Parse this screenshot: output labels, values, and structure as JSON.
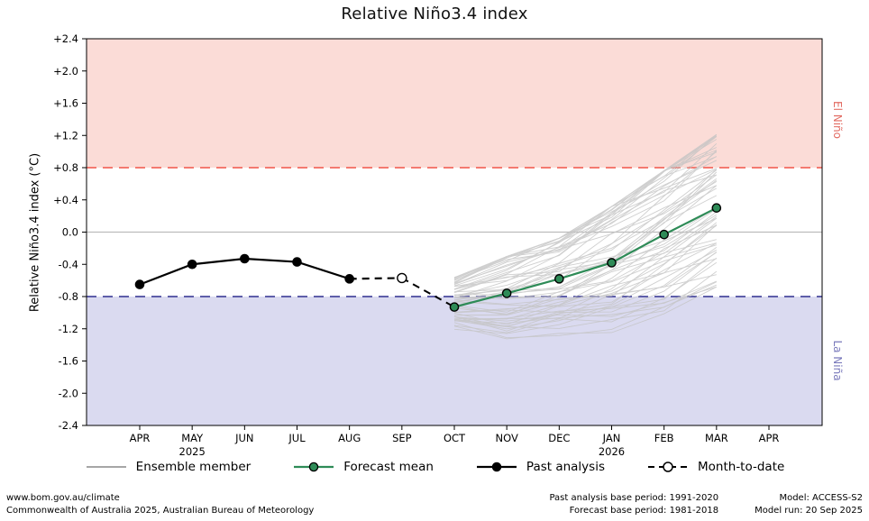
{
  "chart_data": {
    "type": "line",
    "title": "Relative Niño3.4 index",
    "ylabel": "Relative Niño3.4 index (°C)",
    "ylim": [
      -2.4,
      2.4
    ],
    "ytick_step": 0.4,
    "grid": false,
    "x_categories": [
      "APR",
      "MAY",
      "JUN",
      "JUL",
      "AUG",
      "SEP",
      "OCT",
      "NOV",
      "DEC",
      "JAN",
      "FEB",
      "MAR",
      "APR"
    ],
    "x_year_labels": [
      {
        "index": 1,
        "label": "2025"
      },
      {
        "index": 9,
        "label": "2026"
      }
    ],
    "regions": [
      {
        "key": "el-nino",
        "name": "El Niño",
        "from": 0.8,
        "to": 2.4,
        "fill": "#fbdcd7",
        "label_color": "#e26b62"
      },
      {
        "key": "la-nina",
        "name": "La Niña",
        "from": -2.4,
        "to": -0.8,
        "fill": "#dadaf0",
        "label_color": "#7979bb"
      }
    ],
    "threshold_lines": [
      {
        "key": "el-nino-threshold",
        "value": 0.8,
        "color": "#f4695f",
        "style": "dashed"
      },
      {
        "key": "la-nina-threshold",
        "value": -0.8,
        "color": "#4a4a9e",
        "style": "dashed"
      },
      {
        "key": "zero-line",
        "value": 0,
        "color": "#bcbcbc",
        "style": "solid"
      }
    ],
    "series": [
      {
        "name": "Past analysis",
        "months": [
          "APR",
          "MAY",
          "JUN",
          "JUL",
          "AUG"
        ],
        "values": [
          -0.65,
          -0.4,
          -0.33,
          -0.37,
          -0.58
        ],
        "line_color": "#000000",
        "line_style": "solid",
        "marker_fill": "#000000",
        "marker_stroke": "#000000",
        "marker_points": "all"
      },
      {
        "name": "Month-to-date",
        "months": [
          "AUG",
          "SEP"
        ],
        "values": [
          -0.58,
          -0.57
        ],
        "line_color": "#000000",
        "line_style": "dashed",
        "marker_fill": "#ffffff",
        "marker_stroke": "#000000",
        "marker_points": "last"
      },
      {
        "name": "Forecast mean",
        "months": [
          "OCT",
          "NOV",
          "DEC",
          "JAN",
          "FEB",
          "MAR"
        ],
        "values": [
          -0.93,
          -0.76,
          -0.58,
          -0.38,
          -0.03,
          0.3
        ],
        "line_color": "#2e8b57",
        "line_style": "solid",
        "marker_fill": "#2e8b57",
        "marker_stroke": "#000000",
        "marker_points": "all"
      }
    ],
    "connector": {
      "from_month": "SEP",
      "from_value": -0.57,
      "to_month": "OCT",
      "to_value": -0.93,
      "color": "#000000",
      "style": "dashed"
    },
    "ensemble": {
      "name": "Ensemble member",
      "color": "#c4c4c4",
      "count": 60,
      "x": [
        "OCT",
        "NOV",
        "DEC",
        "JAN",
        "FEB",
        "MAR"
      ],
      "envelope_min": [
        -1.22,
        -1.4,
        -1.35,
        -1.28,
        -1.05,
        -0.72
      ],
      "envelope_max": [
        -0.55,
        -0.28,
        -0.05,
        0.35,
        0.8,
        1.25
      ]
    }
  },
  "legend": {
    "items": [
      {
        "label": "Ensemble member"
      },
      {
        "label": "Forecast mean"
      },
      {
        "label": "Past analysis"
      },
      {
        "label": "Month-to-date"
      }
    ]
  },
  "footer": {
    "left_line1": "www.bom.gov.au/climate",
    "left_line2": "Commonwealth of Australia 2025, Australian Bureau of Meteorology",
    "center_line1": "Past analysis base period: 1991-2020",
    "center_line2": "Forecast base period: 1981-2018",
    "right_line1": "Model: ACCESS-S2",
    "right_line2": "Model run: 20 Sep 2025"
  }
}
